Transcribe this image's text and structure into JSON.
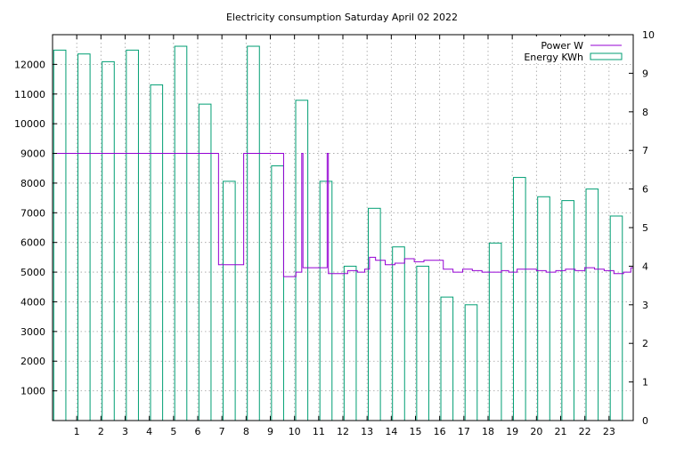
{
  "chart_data": {
    "type": "bar+line",
    "title": "Electricity consumption Saturday April 02 2022",
    "xlabel": "",
    "ylabel": "",
    "y2label": "",
    "xlim": [
      0,
      24
    ],
    "ylim": [
      0,
      13000
    ],
    "y2lim": [
      0,
      10
    ],
    "x_ticks": [
      "1",
      "2",
      "3",
      "4",
      "5",
      "6",
      "7",
      "8",
      "9",
      "10",
      "11",
      "12",
      "13",
      "14",
      "15",
      "16",
      "17",
      "18",
      "19",
      "20",
      "21",
      "22",
      "23"
    ],
    "y_ticks": [
      "1000",
      "2000",
      "3000",
      "4000",
      "5000",
      "6000",
      "7000",
      "8000",
      "9000",
      "10000",
      "11000",
      "12000"
    ],
    "y2_ticks": [
      "0",
      "1",
      "2",
      "3",
      "4",
      "5",
      "6",
      "7",
      "8",
      "9",
      "10"
    ],
    "grid": true,
    "legend_position": "top-right",
    "colors": {
      "power": "#9400d3",
      "energy": "#009e73"
    },
    "series": [
      {
        "name": "Power W",
        "type": "line",
        "axis": "y",
        "x": [
          0,
          6.82,
          6.86,
          7.86,
          7.9,
          9.48,
          9.55,
          9.98,
          10.06,
          10.3,
          10.35,
          11.35,
          11.4,
          11.8,
          12.2,
          12.6,
          12.9,
          13.1,
          13.35,
          13.75,
          14.15,
          14.55,
          14.95,
          15.35,
          15.75,
          16.15,
          16.55,
          16.95,
          17.35,
          17.75,
          18.15,
          18.55,
          18.85,
          19.2,
          19.6,
          20.0,
          20.4,
          20.8,
          21.2,
          21.6,
          22.0,
          22.4,
          22.8,
          23.2,
          23.6,
          23.9,
          24.0
        ],
        "values": [
          9000,
          9000,
          5250,
          5250,
          9000,
          9000,
          4850,
          4850,
          5000,
          9000,
          5150,
          9000,
          4950,
          4950,
          5050,
          5000,
          5100,
          5500,
          5400,
          5250,
          5300,
          5450,
          5350,
          5400,
          5400,
          5100,
          5000,
          5100,
          5050,
          5000,
          5000,
          5050,
          5000,
          5100,
          5100,
          5050,
          5000,
          5050,
          5100,
          5050,
          5150,
          5100,
          5050,
          4950,
          5000,
          5150,
          5200
        ]
      },
      {
        "name": "Energy KWh",
        "type": "bar",
        "axis": "y2",
        "x": [
          0,
          1,
          2,
          3,
          4,
          5,
          6,
          7,
          8,
          9,
          10,
          11,
          12,
          13,
          14,
          15,
          16,
          17,
          18,
          19,
          20,
          21,
          22,
          23
        ],
        "values": [
          9.6,
          9.5,
          9.3,
          9.6,
          8.7,
          9.7,
          8.2,
          6.2,
          9.7,
          6.6,
          8.3,
          6.2,
          4.0,
          5.5,
          4.5,
          4.0,
          3.2,
          3.0,
          4.6,
          6.3,
          5.8,
          5.7,
          6.0,
          5.3
        ]
      }
    ]
  }
}
